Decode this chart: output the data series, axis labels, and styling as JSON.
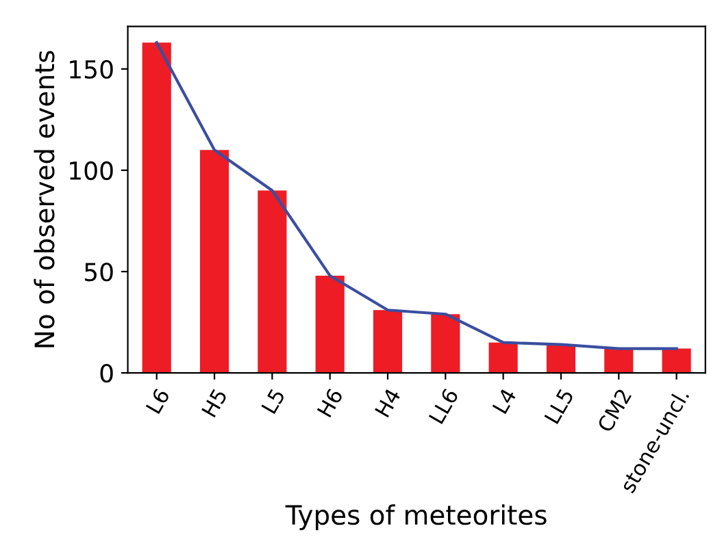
{
  "chart_data": {
    "type": "bar",
    "xlabel": "Types of meteorites",
    "ylabel": "No of observed events",
    "categories": [
      "L6",
      "H5",
      "L5",
      "H6",
      "H4",
      "LL6",
      "L4",
      "LL5",
      "CM2",
      "stone-uncl."
    ],
    "series": [
      {
        "color": "#ee1c25",
        "values": [
          163,
          110,
          90,
          48,
          31,
          29,
          15,
          14,
          12,
          12
        ]
      },
      {
        "type": "line",
        "color": "#3a4ea0",
        "values": [
          163,
          110,
          90,
          48,
          31,
          29,
          15,
          14,
          12,
          12
        ]
      }
    ],
    "ylim": [
      0,
      171
    ],
    "yticks": [
      0,
      50,
      100,
      150
    ],
    "grid": false,
    "legend": false,
    "marker": "none",
    "line_style": "solid"
  }
}
